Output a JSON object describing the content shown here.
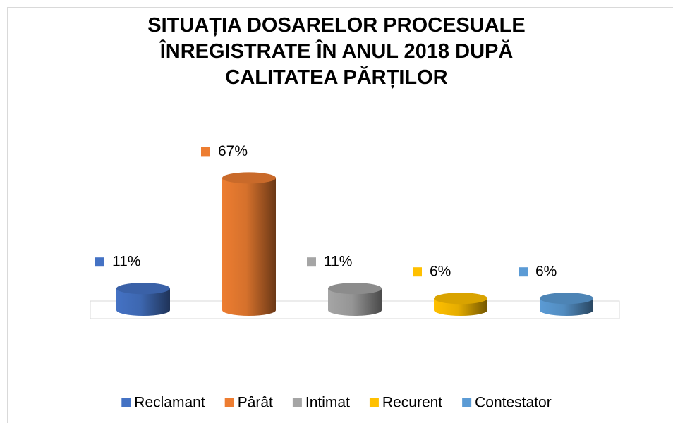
{
  "chart_data": {
    "type": "cylinder",
    "title": "SITUAȚIA DOSARELOR PROCESUALE\nÎNREGISTRATE ÎN ANUL 2018 DUPĂ\nCALITATEA PĂRȚILOR",
    "categories": [
      "Reclamant",
      "Pârât",
      "Intimat",
      "Recurent",
      "Contestator"
    ],
    "values": [
      11,
      67,
      11,
      6,
      6
    ],
    "value_labels": [
      "11%",
      "67%",
      "11%",
      "6%",
      "6%"
    ],
    "colors": [
      "#4472c4",
      "#ed7d31",
      "#a5a5a5",
      "#ffc000",
      "#5b9bd5"
    ],
    "legend": "bottom"
  }
}
